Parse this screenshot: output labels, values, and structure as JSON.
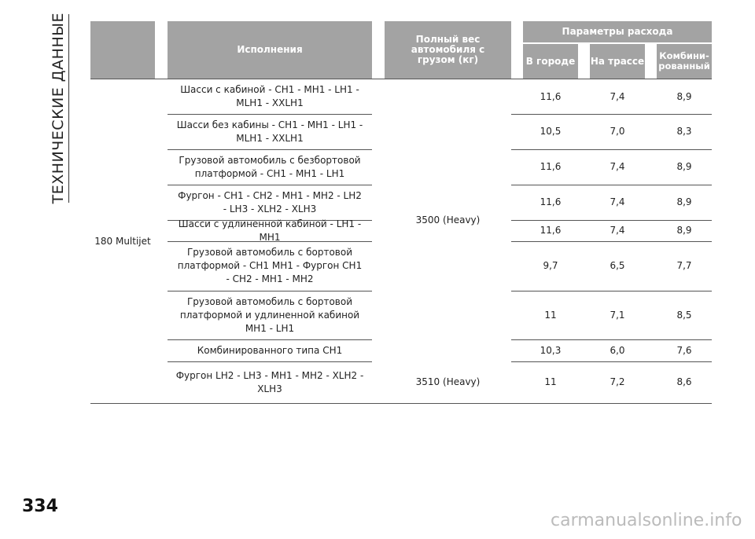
{
  "side_title": "ТЕХНИЧЕСКИЕ ДАННЫЕ",
  "page_number": "334",
  "watermark": "carmanualsonline.info",
  "table": {
    "headers": {
      "variant": "Исполнения",
      "weight": "Полный вес автомобиля с грузом (кг)",
      "consumption": "Параметры расхода",
      "city": "В городе",
      "highway": "На трассе",
      "combined": "Комбини-рованный"
    },
    "model": "180 Multijet",
    "weights": [
      "3500 (Heavy)",
      "3510 (Heavy)"
    ],
    "rows": [
      [
        "Шасси с кабиной - CH1 - MH1 - LH1 - MLH1 - XXLH1",
        "11,6",
        "7,4",
        "8,9"
      ],
      [
        "Шасси без кабины - CH1 - MH1 - LH1 - MLH1 - XXLH1",
        "10,5",
        "7,0",
        "8,3"
      ],
      [
        "Грузовой автомобиль с безбортовой платформой - CH1 - MH1 - LH1",
        "11,6",
        "7,4",
        "8,9"
      ],
      [
        "Фургон - CH1 - CH2 - MH1 - MH2 - LH2 - LH3 - XLH2 - XLH3",
        "11,6",
        "7,4",
        "8,9"
      ],
      [
        "Шасси с удлиненной кабиной - LH1 - MH1",
        "11,6",
        "7,4",
        "8,9"
      ],
      [
        "Грузовой автомобиль с бортовой платформой - CH1 MH1 - Фургон CH1 - CH2 - MH1 - MH2",
        "9,7",
        "6,5",
        "7,7"
      ],
      [
        "Грузовой автомобиль с бортовой платформой и удлиненной кабиной MH1 - LH1",
        "11",
        "7,1",
        "8,5"
      ],
      [
        "Комбинированного типа CH1",
        "10,3",
        "6,0",
        "7,6"
      ],
      [
        "Фургон LH2 - LH3 - MH1 - MH2 - XLH2 - XLH3",
        "11",
        "7,2",
        "8,6"
      ]
    ]
  }
}
